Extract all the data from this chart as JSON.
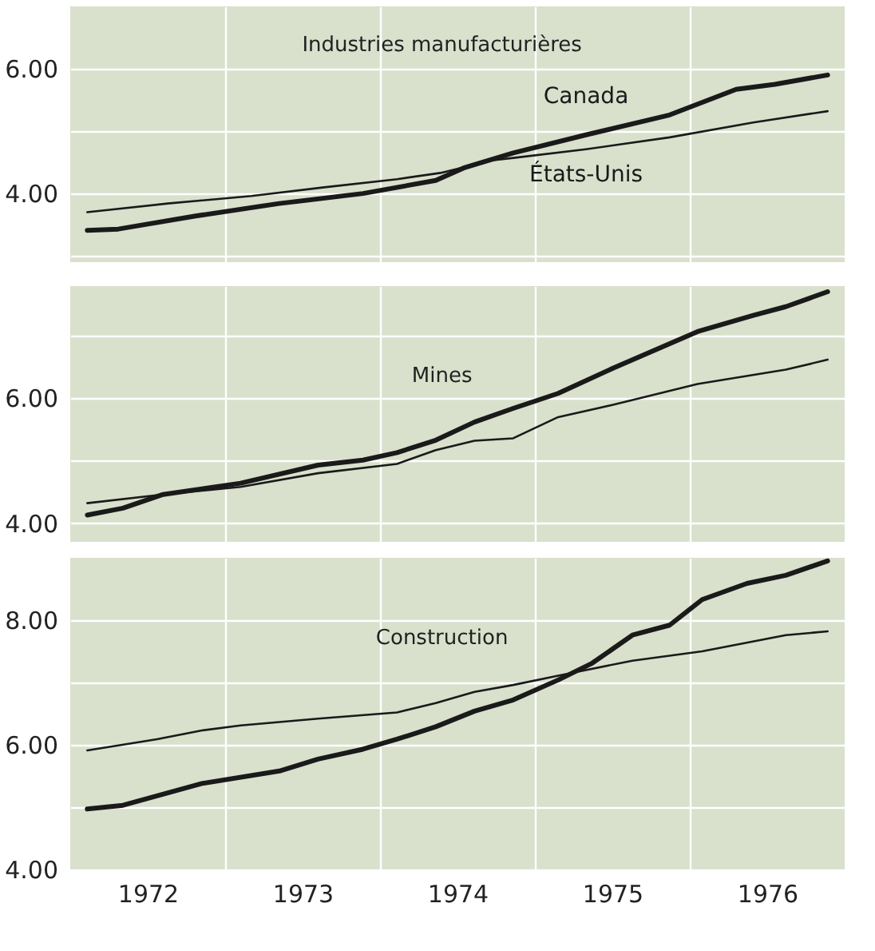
{
  "chart_data": [
    {
      "type": "line",
      "title": "Industries manufacturières",
      "xlim": [
        1972,
        1977
      ],
      "ylim": [
        2.9,
        7.0
      ],
      "tick_labels": "y",
      "grid": true,
      "xticks": [
        {
          "value": 1973,
          "label": null
        },
        {
          "value": 1974,
          "label": null
        },
        {
          "value": 1975,
          "label": null
        },
        {
          "value": 1976,
          "label": null
        }
      ],
      "yticks": [
        {
          "value": 3,
          "label": null
        },
        {
          "value": 4,
          "label": "4.00"
        },
        {
          "value": 5,
          "label": null
        },
        {
          "value": 6,
          "label": "6.00"
        }
      ],
      "series": [
        {
          "name": "Canada",
          "color": "#1a1a1a",
          "x": [
            1972.11,
            1972.31,
            1972.81,
            1973.35,
            1973.89,
            1974.36,
            1974.54,
            1974.86,
            1975.33,
            1975.87,
            1976.3,
            1976.55,
            1976.89
          ],
          "values": [
            3.41,
            3.43,
            3.64,
            3.84,
            4.0,
            4.21,
            4.41,
            4.65,
            4.94,
            5.26,
            5.67,
            5.75,
            5.9
          ]
        },
        {
          "name": "États-Unis",
          "color": "#1a1a1a",
          "x": [
            1972.11,
            1972.63,
            1973.17,
            1973.64,
            1974.11,
            1974.39,
            1974.72,
            1974.86,
            1975.33,
            1975.87,
            1976.41,
            1976.89
          ],
          "values": [
            3.7,
            3.84,
            3.96,
            4.1,
            4.23,
            4.33,
            4.53,
            4.57,
            4.71,
            4.9,
            5.14,
            5.32
          ]
        }
      ]
    },
    {
      "type": "line",
      "title": "Mines",
      "xlim": [
        1972,
        1977
      ],
      "ylim": [
        3.7,
        7.8
      ],
      "tick_labels": "y",
      "grid": true,
      "xticks": [
        {
          "value": 1973,
          "label": null
        },
        {
          "value": 1974,
          "label": null
        },
        {
          "value": 1975,
          "label": null
        },
        {
          "value": 1976,
          "label": null
        }
      ],
      "yticks": [
        {
          "value": 4,
          "label": "4.00"
        },
        {
          "value": 5,
          "label": null
        },
        {
          "value": 6,
          "label": "6.00"
        },
        {
          "value": 7,
          "label": null
        }
      ],
      "series": [
        {
          "color": "#1a1a1a",
          "x": [
            1972.11,
            1972.34,
            1972.6,
            1973.1,
            1973.6,
            1973.89,
            1974.11,
            1974.36,
            1974.61,
            1974.86,
            1975.15,
            1975.51,
            1976.05,
            1976.41,
            1976.62,
            1976.89
          ],
          "values": [
            4.13,
            4.24,
            4.46,
            4.64,
            4.93,
            5.01,
            5.13,
            5.33,
            5.62,
            5.84,
            6.08,
            6.49,
            7.07,
            7.33,
            7.47,
            7.71
          ]
        },
        {
          "color": "#1a1a1a",
          "x": [
            1972.11,
            1972.6,
            1973.1,
            1973.6,
            1974.11,
            1974.36,
            1974.61,
            1974.86,
            1975.15,
            1975.51,
            1976.05,
            1976.62,
            1976.89
          ],
          "values": [
            4.32,
            4.46,
            4.58,
            4.8,
            4.95,
            5.17,
            5.32,
            5.36,
            5.7,
            5.9,
            6.23,
            6.46,
            6.62
          ]
        }
      ]
    },
    {
      "type": "line",
      "title": "Construction",
      "xlim": [
        1972,
        1977
      ],
      "ylim": [
        4.0,
        9.0
      ],
      "grid": true,
      "xticks": [
        {
          "value": 1972.5,
          "label": "1972"
        },
        {
          "value": 1973.5,
          "label": "1973"
        },
        {
          "value": 1974.5,
          "label": "1974"
        },
        {
          "value": 1975.5,
          "label": "1975"
        },
        {
          "value": 1976.5,
          "label": "1976"
        },
        {
          "value": 1973,
          "label": null
        },
        {
          "value": 1974,
          "label": null
        },
        {
          "value": 1975,
          "label": null
        },
        {
          "value": 1976,
          "label": null
        }
      ],
      "yticks": [
        {
          "value": 4,
          "label": "4.00"
        },
        {
          "value": 5,
          "label": null
        },
        {
          "value": 6,
          "label": "6.00"
        },
        {
          "value": 7,
          "label": null
        },
        {
          "value": 8,
          "label": "8.00"
        }
      ],
      "series": [
        {
          "color": "#1a1a1a",
          "x": [
            1972.11,
            1972.34,
            1972.85,
            1973.35,
            1973.6,
            1973.89,
            1974.11,
            1974.36,
            1974.61,
            1974.86,
            1975.15,
            1975.37,
            1975.63,
            1975.87,
            1976.08,
            1976.37,
            1976.62,
            1976.89
          ],
          "values": [
            4.97,
            5.03,
            5.38,
            5.58,
            5.77,
            5.93,
            6.09,
            6.29,
            6.54,
            6.72,
            7.04,
            7.31,
            7.76,
            7.92,
            8.33,
            8.59,
            8.72,
            8.95
          ]
        },
        {
          "color": "#1a1a1a",
          "x": [
            1972.11,
            1972.56,
            1972.85,
            1973.1,
            1973.6,
            1974.11,
            1974.36,
            1974.61,
            1974.86,
            1975.15,
            1975.63,
            1976.08,
            1976.62,
            1976.89
          ],
          "values": [
            5.91,
            6.09,
            6.23,
            6.31,
            6.42,
            6.52,
            6.67,
            6.85,
            6.96,
            7.11,
            7.35,
            7.5,
            7.76,
            7.82
          ]
        }
      ]
    }
  ]
}
